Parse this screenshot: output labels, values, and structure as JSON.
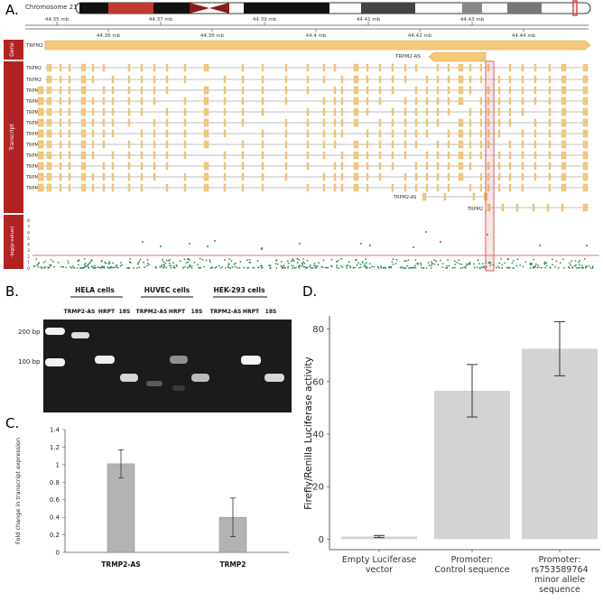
{
  "panels": {
    "a": "A.",
    "b": "B.",
    "c": "C.",
    "d": "D."
  },
  "panel_a": {
    "chromosome_label": "Chromosome 21",
    "top_axis_ticks": [
      "44.35 mb",
      "44.37 mb",
      "44.39 mb",
      "44.41 mb",
      "44.43 mb"
    ],
    "bottom_axis_ticks": [
      "44.36 mb",
      "44.38 mb",
      "44.4 mb",
      "44.42 mb",
      "44.44 mb"
    ],
    "track_labels": {
      "gene": "Gene",
      "transcript": "Transcript",
      "pvalue": "-log(p-value)"
    },
    "gene_labels": {
      "trpm2": "TRPM2",
      "trpm2_as": "TRPM2-AS"
    },
    "transcript_labels": [
      "TRPM2",
      "TRPM2",
      "TRPM2",
      "TRPM2",
      "TRPM2",
      "TRPM2",
      "TRPM2",
      "TRPM2",
      "TRPM2",
      "TRPM2",
      "TRPM2",
      "TRPM2",
      "TRPM2",
      "TRPM2-AS",
      "TRPM2"
    ],
    "pvalue_ticks": [
      "8",
      "7",
      "6",
      "5",
      "4",
      "3",
      "2",
      "1",
      "0"
    ],
    "colors": {
      "gene": "#f5c97a",
      "gene_stroke": "#d9a54a",
      "track_label_bg": "#b22222",
      "dots": "#2e8b57",
      "highlight": "#e05a5a",
      "line": "#999999"
    }
  },
  "panel_b": {
    "cell_lines": [
      "HELA cells",
      "HUVEC cells",
      "HEK-293 cells"
    ],
    "lane_labels": [
      [
        "TRMP2-AS",
        "HRPT",
        "18S"
      ],
      [
        "TRPM2-AS",
        "HRPT",
        "18S"
      ],
      [
        "TRPM2-AS",
        "HRPT",
        "18S"
      ]
    ],
    "ladder": [
      "200 bp",
      "100 bp"
    ]
  },
  "panel_c": {
    "chart_data": {
      "type": "bar",
      "categories": [
        "TRMP2-AS",
        "TRMP2"
      ],
      "values": [
        1.01,
        0.4
      ],
      "errors": [
        0.16,
        0.22
      ],
      "ylabel": "Fold change in transcript expression",
      "ylim": [
        0,
        1.4
      ],
      "yticks": [
        "0",
        "0.2",
        "0.4",
        "0.6",
        "0.8",
        "1",
        "1.2",
        "1.4"
      ],
      "bar_color": "#b3b3b3"
    }
  },
  "panel_d": {
    "chart_data": {
      "type": "bar",
      "categories": [
        [
          "Empty Luciferase",
          "vector"
        ],
        [
          "Promoter:",
          "Control sequence"
        ],
        [
          "Promoter:",
          "rs753589764",
          "minor allele",
          "sequence"
        ]
      ],
      "values": [
        1,
        56.5,
        72.5
      ],
      "errors": [
        0.4,
        10,
        10.3
      ],
      "ylabel": "Firefly/Renilla Luciferase activity",
      "ylim": [
        0,
        85
      ],
      "yticks": [
        "0",
        "20",
        "40",
        "60",
        "80"
      ],
      "bar_color": "#d3d3d3"
    }
  }
}
